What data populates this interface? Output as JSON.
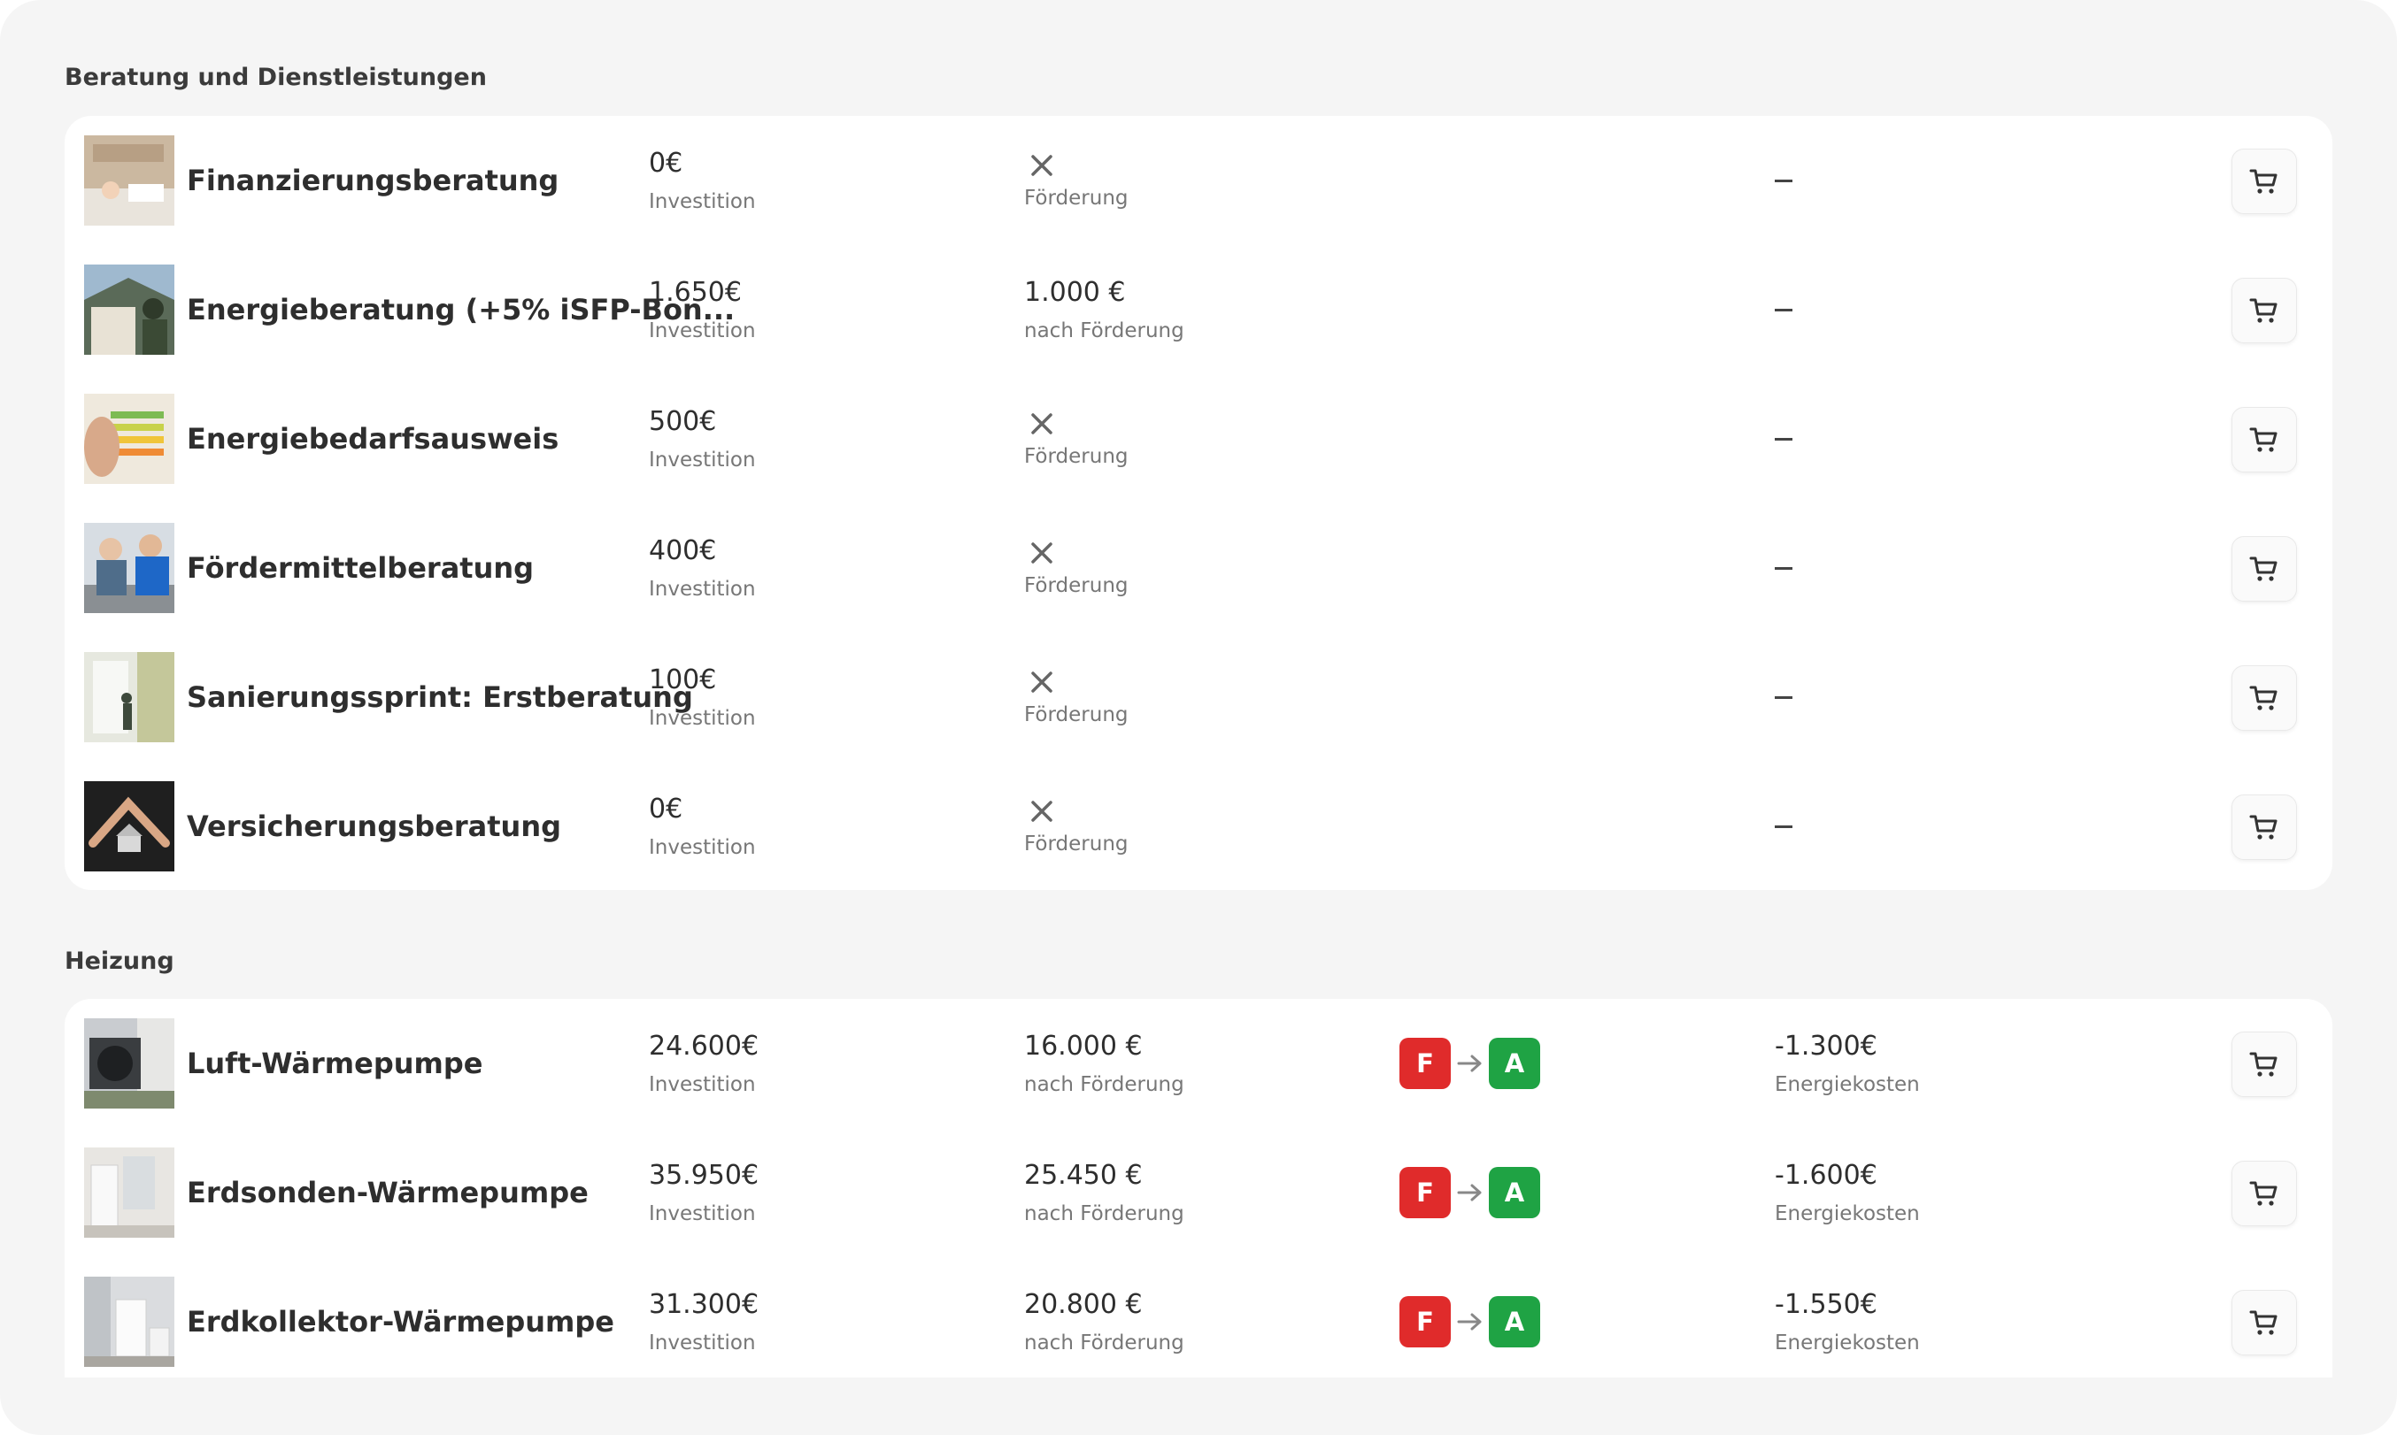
{
  "sections": [
    {
      "title": "Beratung und Dienstleistungen",
      "rows": [
        {
          "name": "Finanzierungsberatung",
          "invest": "0€",
          "invest_label": "Investition",
          "subsidy_label": "Förderung",
          "energy": "–"
        },
        {
          "name": "Energieberatung (+5% iSFP-Bon...",
          "invest": "1.650€",
          "invest_label": "Investition",
          "subsidy": "1.000 €",
          "subsidy_label": "nach Förderung",
          "energy": "–"
        },
        {
          "name": "Energiebedarfsausweis",
          "invest": "500€",
          "invest_label": "Investition",
          "subsidy_label": "Förderung",
          "energy": "–"
        },
        {
          "name": "Fördermittelberatung",
          "invest": "400€",
          "invest_label": "Investition",
          "subsidy_label": "Förderung",
          "energy": "–"
        },
        {
          "name": "Sanierungssprint: Erstberatung",
          "invest": "100€",
          "invest_label": "Investition",
          "subsidy_label": "Förderung",
          "energy": "–"
        },
        {
          "name": "Versicherungsberatung",
          "invest": "0€",
          "invest_label": "Investition",
          "subsidy_label": "Förderung",
          "energy": "–"
        }
      ]
    },
    {
      "title": "Heizung",
      "rows": [
        {
          "name": "Luft-Wärmepumpe",
          "invest": "24.600€",
          "invest_label": "Investition",
          "subsidy": "16.000 €",
          "subsidy_label": "nach Förderung",
          "class_from": "F",
          "class_to": "A",
          "energy": "-1.300€",
          "energy_label": "Energiekosten"
        },
        {
          "name": "Erdsonden-Wärmepumpe",
          "invest": "35.950€",
          "invest_label": "Investition",
          "subsidy": "25.450 €",
          "subsidy_label": "nach Förderung",
          "class_from": "F",
          "class_to": "A",
          "energy": "-1.600€",
          "energy_label": "Energiekosten"
        },
        {
          "name": "Erdkollektor-Wärmepumpe",
          "invest": "31.300€",
          "invest_label": "Investition",
          "subsidy": "20.800 €",
          "subsidy_label": "nach Förderung",
          "class_from": "F",
          "class_to": "A",
          "energy": "-1.550€",
          "energy_label": "Energiekosten"
        }
      ]
    }
  ],
  "colors": {
    "class_from": "#e02b2b",
    "class_to": "#1fa344"
  },
  "icons": {
    "cart": "shopping-cart-icon",
    "no_subsidy": "close-icon",
    "transition": "arrow-right-icon"
  }
}
